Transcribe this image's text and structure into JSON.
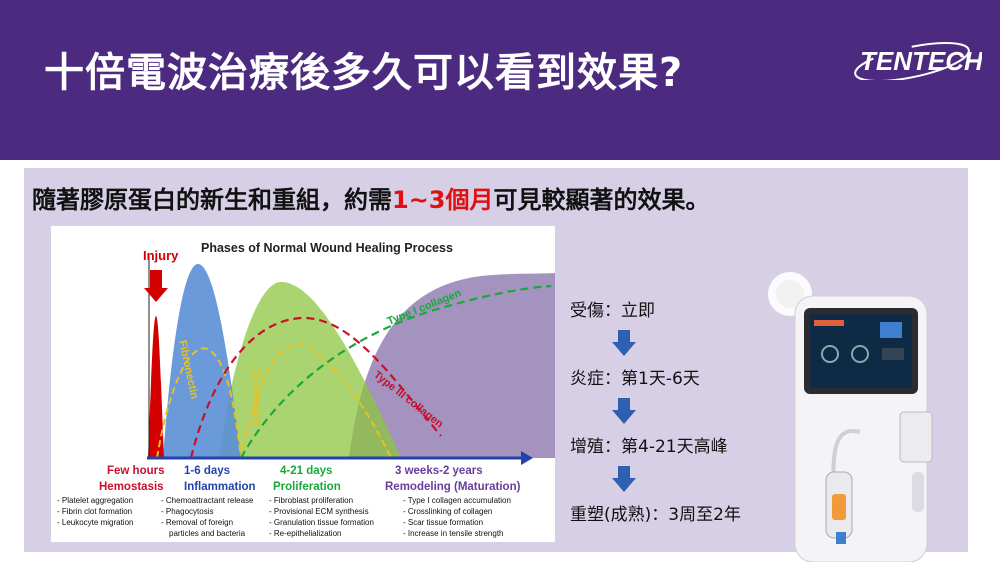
{
  "header": {
    "title": "十倍電波治療後多久可以看到效果?",
    "logo_text": "TENTECH",
    "bg_color": "#4b2a7f"
  },
  "panel": {
    "subtitle_pre": "隨著膠原蛋白的新生和重組，約需",
    "subtitle_highlight": "1~3個月",
    "subtitle_post": "可見較顯著的效果。",
    "highlight_color": "#e01010"
  },
  "steps": [
    {
      "label": "受傷：立即"
    },
    {
      "label": "炎症：第1天-6天"
    },
    {
      "label": "增殖：第4-21天高峰"
    },
    {
      "label": "重塑(成熟)：3周至2年"
    }
  ],
  "chart_data": {
    "type": "area",
    "title": "Phases of Normal Wound Healing Process",
    "injury_label": "Injury",
    "phases": [
      {
        "time": "Few hours",
        "name": "Hemostasis",
        "activities": [
          "- Platelet aggregation",
          "- Fibrin clot formation",
          "- Leukocyte migration"
        ]
      },
      {
        "time": "1-6 days",
        "name": "Inflammation",
        "activities": [
          "- Chemoattractant release",
          "- Phagocytosis",
          "- Removal of foreign",
          "particles and bacteria"
        ]
      },
      {
        "time": "4-21 days",
        "name": "Proliferation",
        "activities": [
          "- Fibroblast proliferation",
          "- Provisional ECM synthesis",
          "- Granulation tissue formation",
          "- Re-epithelialization"
        ]
      },
      {
        "time": "3 weeks-2 years",
        "name": "Remodeling (Maturation)",
        "activities": [
          "- Type I collagen accumulation",
          "- Crosslinking of collagen",
          "- Scar tissue formation",
          "- Increase in tensile strength"
        ]
      }
    ],
    "curve_labels": [
      "Fibronectin",
      "Fibronectin",
      "Type I collagen",
      "Type III collagen"
    ],
    "colors": {
      "hemostasis": "#d40000",
      "inflammation": "#5b8fd6",
      "proliferation": "#8ec63f",
      "remodeling": "#9a86b8",
      "type1": "#1aa83a",
      "type3": "#c8102e",
      "fibronectin": "#e8c020",
      "time_text": "#c8102e"
    }
  }
}
